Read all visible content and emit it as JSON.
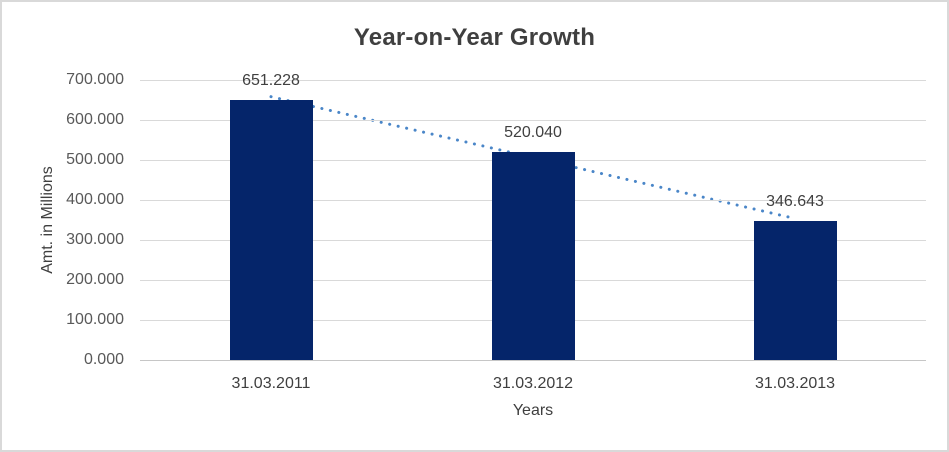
{
  "window": {
    "background": "#ffffff",
    "border_color": "#d9d9d9"
  },
  "chart_data": {
    "type": "bar",
    "title": "Year-on-Year Growth",
    "categories": [
      "31.03.2011",
      "31.03.2012",
      "31.03.2013"
    ],
    "values": [
      651.228,
      520.04,
      346.643
    ],
    "data_labels": [
      "651.228",
      "520.040",
      "346.643"
    ],
    "xlabel": "Years",
    "ylabel": "Amt. in Millions",
    "ylim": [
      0,
      700
    ],
    "ytick_step": 100,
    "ytick_labels": [
      "700.000",
      "600.000",
      "500.000",
      "400.000",
      "300.000",
      "200.000",
      "100.000",
      "0.000"
    ],
    "grid": true,
    "legend": "none",
    "bar_color": "#05256a",
    "data_label_color": "#404040",
    "tick_label_color": "#595959",
    "gridline_color": "#d9d9d9",
    "trendline": {
      "fit": "linear",
      "style": "dotted",
      "color": "#4a86c8",
      "value_at_first_category": 658.3,
      "value_at_last_category": 353.7
    }
  }
}
